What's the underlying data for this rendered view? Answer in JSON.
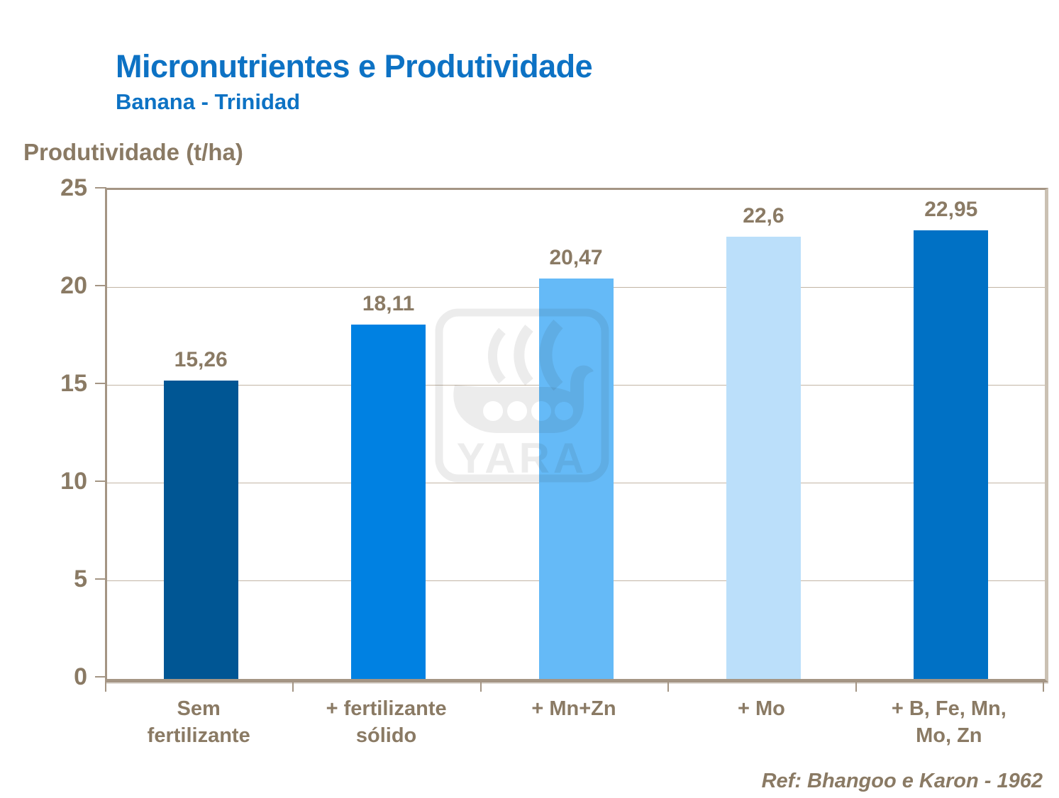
{
  "header": {
    "title": "Micronutrientes e Produtividade",
    "subtitle": "Banana - Trinidad"
  },
  "watermark": {
    "text": "YARA"
  },
  "reference": "Ref: Bhangoo e Karon - 1962",
  "colors": {
    "title_blue": "#0D72C4",
    "label_brown": "#8A7A64",
    "frame_tan": "#A49584",
    "frame_light": "#CBC1B3",
    "gridline": "#C2B5A5"
  },
  "chart_data": {
    "type": "bar",
    "title": "Micronutrientes e Produtividade",
    "subtitle": "Banana - Trinidad",
    "ylabel": "Produtividade (t/ha)",
    "xlabel": "",
    "categories": [
      "Sem fertilizante",
      "+ fertilizante sólido",
      "+ Mn+Zn",
      "+ Mo",
      "+ B, Fe, Mn, Mo, Zn"
    ],
    "categories_display": [
      "Sem\nfertilizante",
      "+ fertilizante\nsólido",
      "+ Mn+Zn",
      "+ Mo",
      "+ B, Fe, Mn,\nMo, Zn"
    ],
    "values": [
      15.26,
      18.11,
      20.47,
      22.6,
      22.95
    ],
    "value_labels": [
      "15,26",
      "18,11",
      "20,47",
      "22,6",
      "22,95"
    ],
    "bar_colors": [
      "#005694",
      "#0081E2",
      "#65BAF7",
      "#BBDFFA",
      "#0071C5"
    ],
    "ylim": [
      0,
      25
    ],
    "yticks": [
      0,
      5,
      10,
      15,
      20,
      25
    ],
    "grid": true,
    "legend_position": "none",
    "reference": "Ref: Bhangoo e Karon - 1962"
  }
}
